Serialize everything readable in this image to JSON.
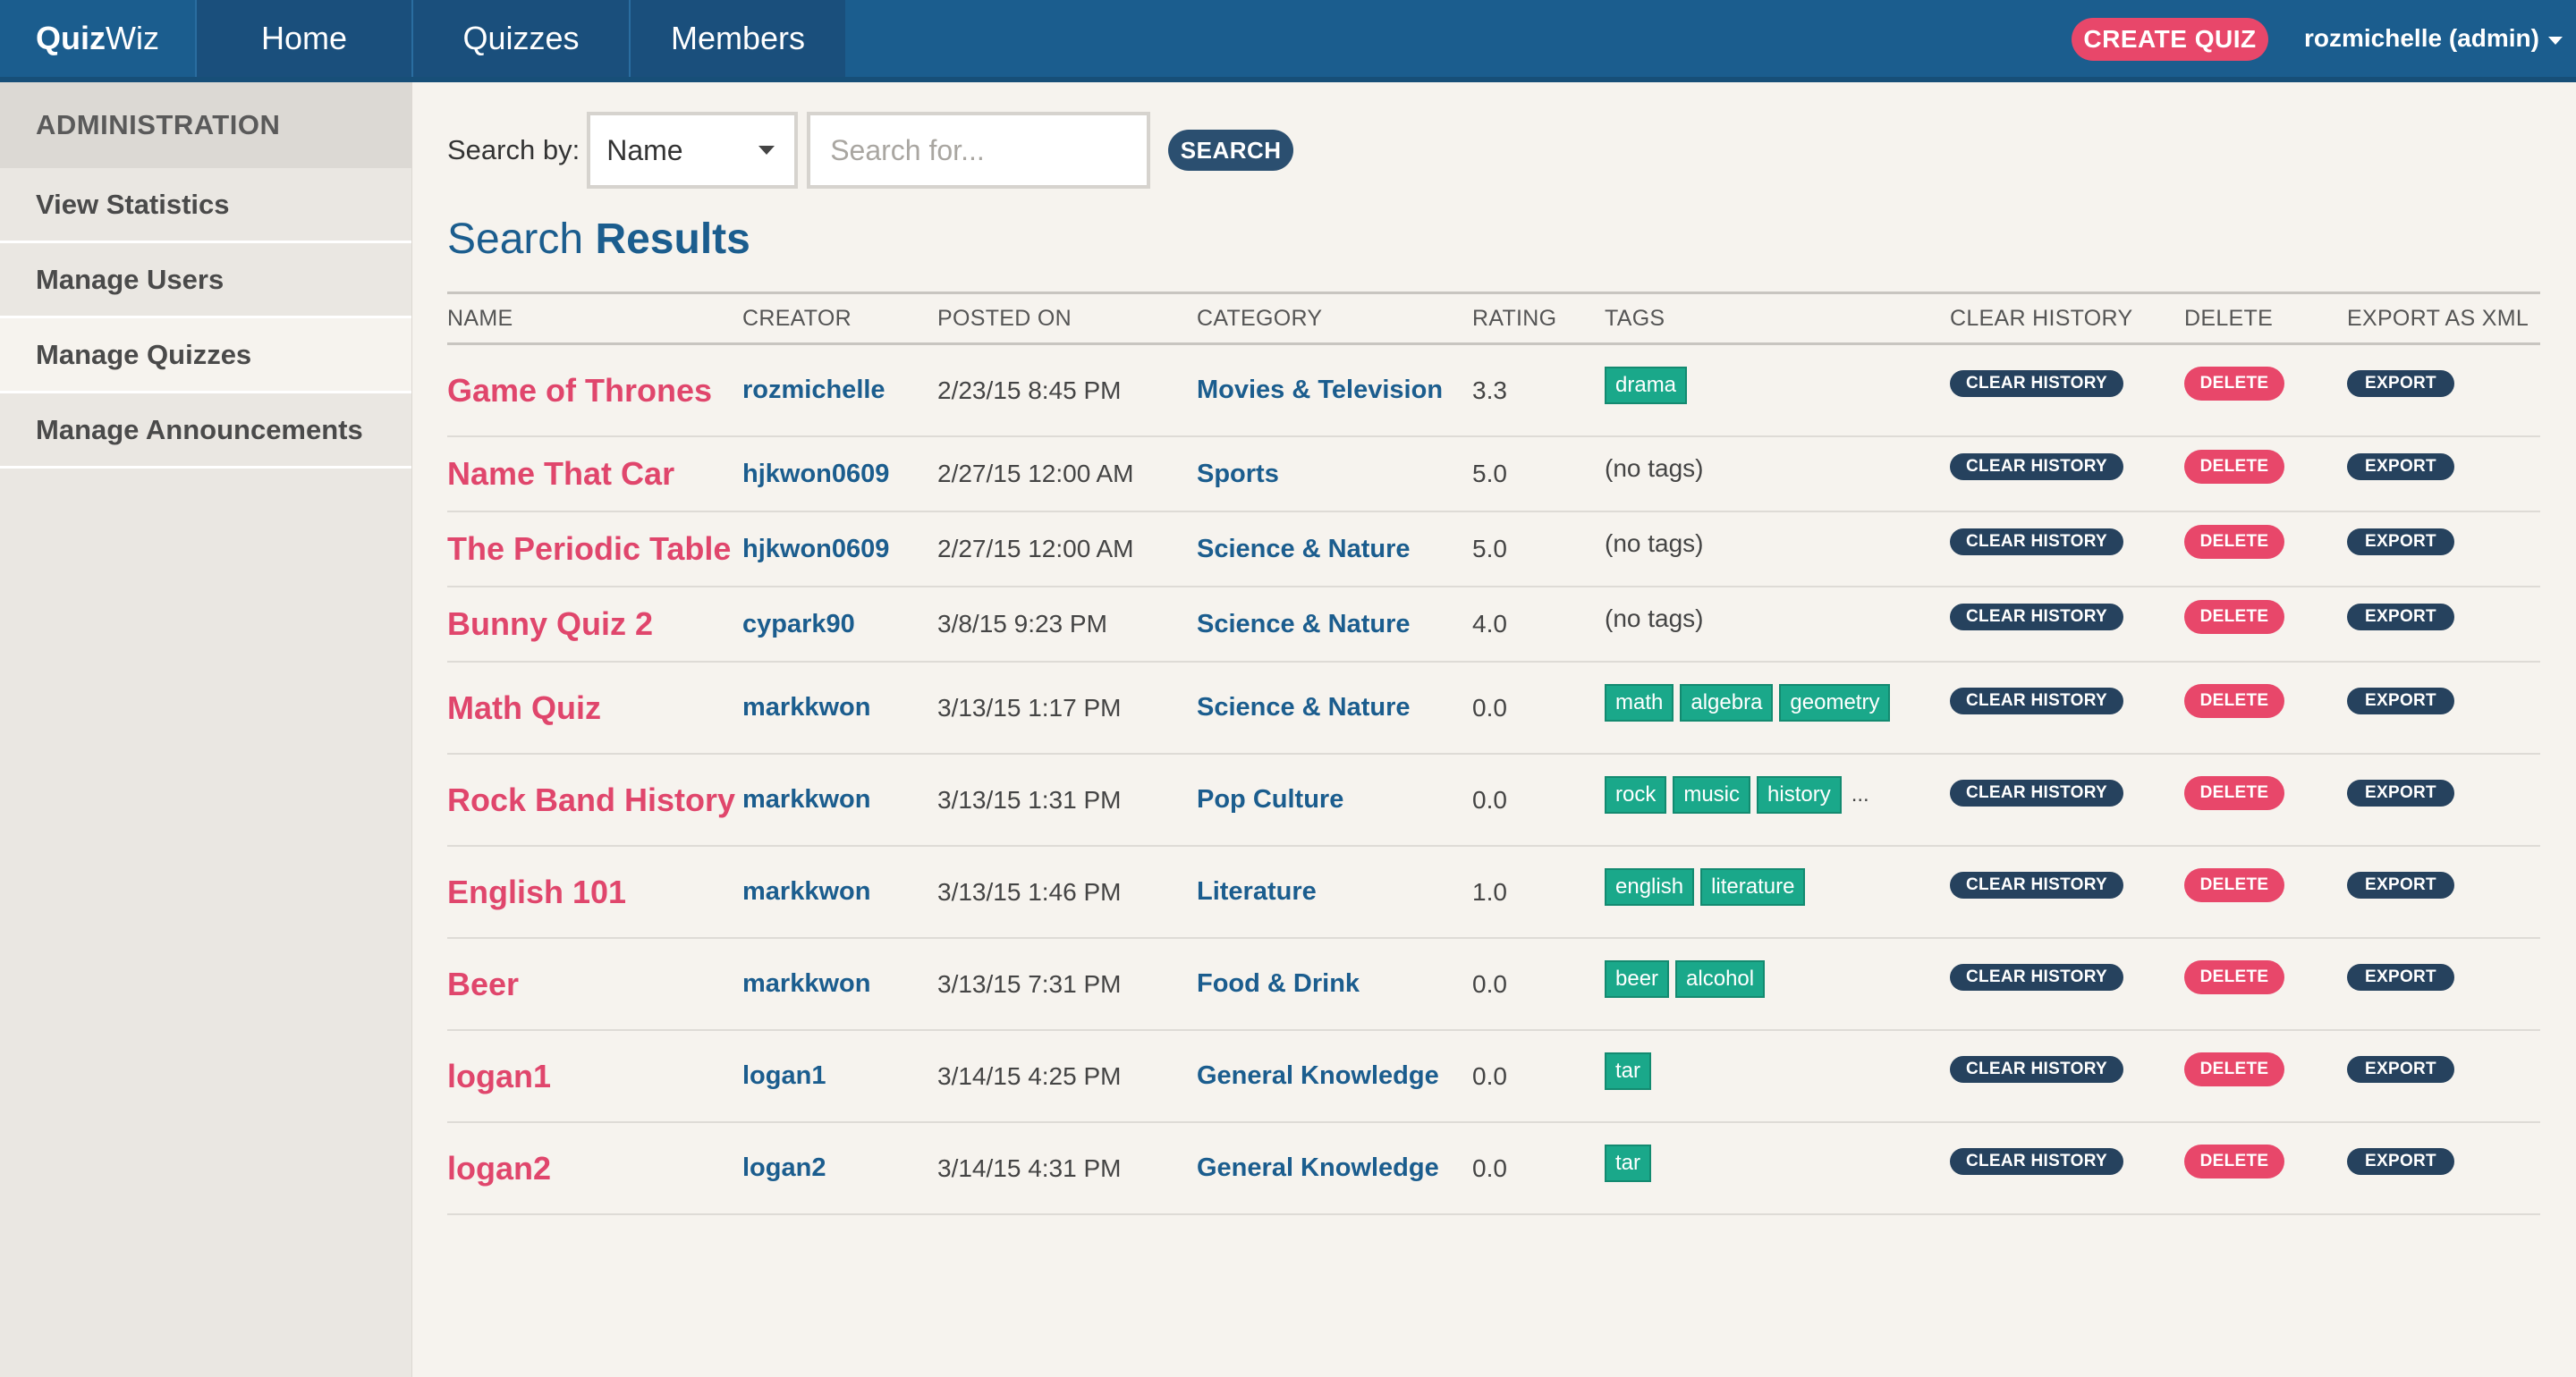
{
  "navbar": {
    "brand_bold": "Quiz",
    "brand_light": "Wiz",
    "tabs": [
      "Home",
      "Quizzes",
      "Members"
    ],
    "create_quiz_label": "CREATE QUIZ",
    "user_label": "rozmichelle (admin)"
  },
  "sidebar": {
    "header": "ADMINISTRATION",
    "items": [
      {
        "label": "View Statistics",
        "active": false
      },
      {
        "label": "Manage Users",
        "active": false
      },
      {
        "label": "Manage Quizzes",
        "active": true
      },
      {
        "label": "Manage Announcements",
        "active": false
      }
    ]
  },
  "search": {
    "label": "Search by:",
    "field_selected": "Name",
    "placeholder": "Search for...",
    "button_label": "SEARCH"
  },
  "results": {
    "heading_light": "Search",
    "heading_bold": "Results",
    "columns": [
      "NAME",
      "CREATOR",
      "POSTED ON",
      "CATEGORY",
      "RATING",
      "TAGS",
      "CLEAR HISTORY",
      "DELETE",
      "EXPORT AS XML"
    ],
    "action_labels": {
      "clear_history": "CLEAR HISTORY",
      "delete": "DELETE",
      "export": "EXPORT"
    },
    "no_tags_text": "(no tags)",
    "rows": [
      {
        "name": "Game of Thrones",
        "creator": "rozmichelle",
        "posted": "2/23/15 8:45 PM",
        "category": "Movies & Television",
        "rating": "3.3",
        "tags": [
          "drama"
        ],
        "more_tags": false
      },
      {
        "name": "Name That Car",
        "creator": "hjkwon0609",
        "posted": "2/27/15 12:00 AM",
        "category": "Sports",
        "rating": "5.0",
        "tags": [],
        "more_tags": false
      },
      {
        "name": "The Periodic Table",
        "creator": "hjkwon0609",
        "posted": "2/27/15 12:00 AM",
        "category": "Science & Nature",
        "rating": "5.0",
        "tags": [],
        "more_tags": false
      },
      {
        "name": "Bunny Quiz 2",
        "creator": "cypark90",
        "posted": "3/8/15 9:23 PM",
        "category": "Science & Nature",
        "rating": "4.0",
        "tags": [],
        "more_tags": false
      },
      {
        "name": "Math Quiz",
        "creator": "markkwon",
        "posted": "3/13/15 1:17 PM",
        "category": "Science & Nature",
        "rating": "0.0",
        "tags": [
          "math",
          "algebra",
          "geometry"
        ],
        "more_tags": false
      },
      {
        "name": "Rock Band History",
        "creator": "markkwon",
        "posted": "3/13/15 1:31 PM",
        "category": "Pop Culture",
        "rating": "0.0",
        "tags": [
          "rock",
          "music",
          "history"
        ],
        "more_tags": true
      },
      {
        "name": "English 101",
        "creator": "markkwon",
        "posted": "3/13/15 1:46 PM",
        "category": "Literature",
        "rating": "1.0",
        "tags": [
          "english",
          "literature"
        ],
        "more_tags": false
      },
      {
        "name": "Beer",
        "creator": "markkwon",
        "posted": "3/13/15 7:31 PM",
        "category": "Food & Drink",
        "rating": "0.0",
        "tags": [
          "beer",
          "alcohol"
        ],
        "more_tags": false
      },
      {
        "name": "logan1",
        "creator": "logan1",
        "posted": "3/14/15 4:25 PM",
        "category": "General Knowledge",
        "rating": "0.0",
        "tags": [
          "tar"
        ],
        "more_tags": false
      },
      {
        "name": "logan2",
        "creator": "logan2",
        "posted": "3/14/15 4:31 PM",
        "category": "General Knowledge",
        "rating": "0.0",
        "tags": [
          "tar"
        ],
        "more_tags": false
      }
    ],
    "more_tags_text": "..."
  },
  "colors": {
    "navbar": "#1b5d8e",
    "accent_pink": "#e8476a",
    "tag_green": "#1aa88a",
    "pill_dark": "#26425e"
  }
}
